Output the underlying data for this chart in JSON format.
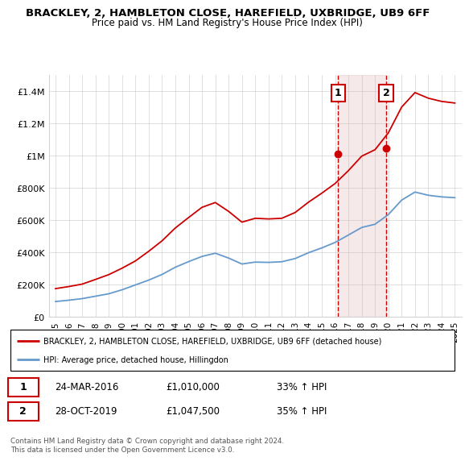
{
  "title": "BRACKLEY, 2, HAMBLETON CLOSE, HAREFIELD, UXBRIDGE, UB9 6FF",
  "subtitle": "Price paid vs. HM Land Registry's House Price Index (HPI)",
  "ylabel_ticks": [
    "£0",
    "£200K",
    "£400K",
    "£600K",
    "£800K",
    "£1M",
    "£1.2M",
    "£1.4M"
  ],
  "ytick_vals": [
    0,
    200000,
    400000,
    600000,
    800000,
    1000000,
    1200000,
    1400000
  ],
  "ylim": [
    0,
    1500000
  ],
  "legend_line1": "BRACKLEY, 2, HAMBLETON CLOSE, HAREFIELD, UXBRIDGE, UB9 6FF (detached house)",
  "legend_line2": "HPI: Average price, detached house, Hillingdon",
  "sale1_label": "1",
  "sale1_date": "24-MAR-2016",
  "sale1_price": "£1,010,000",
  "sale1_info": "33% ↑ HPI",
  "sale2_label": "2",
  "sale2_date": "28-OCT-2019",
  "sale2_price": "£1,047,500",
  "sale2_info": "35% ↑ HPI",
  "footer": "Contains HM Land Registry data © Crown copyright and database right 2024.\nThis data is licensed under the Open Government Licence v3.0.",
  "line_color_red": "#cc0000",
  "line_color_blue": "#6699cc",
  "sale_marker_color": "#cc0000",
  "years": [
    1995,
    1996,
    1997,
    1998,
    1999,
    2000,
    2001,
    2002,
    2003,
    2004,
    2005,
    2006,
    2007,
    2008,
    2009,
    2010,
    2011,
    2012,
    2013,
    2014,
    2015,
    2016,
    2017,
    2018,
    2019,
    2020,
    2021,
    2022,
    2023,
    2024,
    2025
  ],
  "hpi_values": [
    95000,
    103000,
    113000,
    128000,
    143000,
    168000,
    198000,
    228000,
    263000,
    308000,
    343000,
    375000,
    395000,
    365000,
    328000,
    340000,
    338000,
    342000,
    362000,
    398000,
    428000,
    462000,
    508000,
    555000,
    575000,
    635000,
    725000,
    775000,
    755000,
    745000,
    740000
  ],
  "hpi_indexed_values": [
    175000,
    188000,
    203000,
    232000,
    262000,
    302000,
    347000,
    407000,
    472000,
    552000,
    617000,
    680000,
    710000,
    655000,
    588000,
    612000,
    608000,
    612000,
    648000,
    712000,
    768000,
    828000,
    908000,
    998000,
    1038000,
    1143000,
    1303000,
    1393000,
    1358000,
    1338000,
    1328000
  ],
  "sale1_x": 2016.23,
  "sale1_y": 1010000,
  "sale2_x": 2019.83,
  "sale2_y": 1047500,
  "shaded_x1": 2016.23,
  "shaded_x2": 2019.83,
  "shaded_color": "#ddaaaa",
  "shaded_alpha": 0.25,
  "xtick_years": [
    1995,
    1996,
    1997,
    1998,
    1999,
    2000,
    2001,
    2002,
    2003,
    2004,
    2005,
    2006,
    2007,
    2008,
    2009,
    2010,
    2011,
    2012,
    2013,
    2014,
    2015,
    2016,
    2017,
    2018,
    2019,
    2020,
    2021,
    2022,
    2023,
    2024,
    2025
  ]
}
